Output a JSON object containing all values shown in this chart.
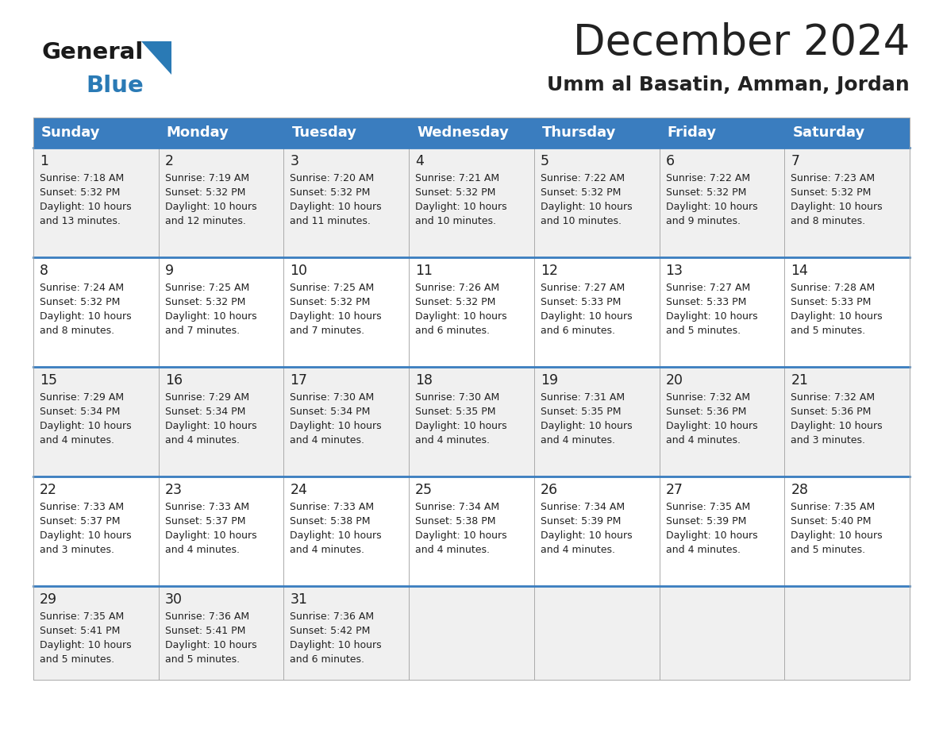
{
  "title": "December 2024",
  "subtitle": "Umm al Basatin, Amman, Jordan",
  "days_of_week": [
    "Sunday",
    "Monday",
    "Tuesday",
    "Wednesday",
    "Thursday",
    "Friday",
    "Saturday"
  ],
  "header_bg": "#3a7dbf",
  "header_text": "#ffffff",
  "row_bg_odd": "#f0f0f0",
  "row_bg_even": "#ffffff",
  "divider_color": "#3a7dbf",
  "grid_line_color": "#aaaaaa",
  "text_color": "#222222",
  "calendar_data": [
    [
      {
        "day": 1,
        "sunrise": "7:18 AM",
        "sunset": "5:32 PM",
        "daylight": "10 hours and 13 minutes."
      },
      {
        "day": 2,
        "sunrise": "7:19 AM",
        "sunset": "5:32 PM",
        "daylight": "10 hours and 12 minutes."
      },
      {
        "day": 3,
        "sunrise": "7:20 AM",
        "sunset": "5:32 PM",
        "daylight": "10 hours and 11 minutes."
      },
      {
        "day": 4,
        "sunrise": "7:21 AM",
        "sunset": "5:32 PM",
        "daylight": "10 hours and 10 minutes."
      },
      {
        "day": 5,
        "sunrise": "7:22 AM",
        "sunset": "5:32 PM",
        "daylight": "10 hours and 10 minutes."
      },
      {
        "day": 6,
        "sunrise": "7:22 AM",
        "sunset": "5:32 PM",
        "daylight": "10 hours and 9 minutes."
      },
      {
        "day": 7,
        "sunrise": "7:23 AM",
        "sunset": "5:32 PM",
        "daylight": "10 hours and 8 minutes."
      }
    ],
    [
      {
        "day": 8,
        "sunrise": "7:24 AM",
        "sunset": "5:32 PM",
        "daylight": "10 hours and 8 minutes."
      },
      {
        "day": 9,
        "sunrise": "7:25 AM",
        "sunset": "5:32 PM",
        "daylight": "10 hours and 7 minutes."
      },
      {
        "day": 10,
        "sunrise": "7:25 AM",
        "sunset": "5:32 PM",
        "daylight": "10 hours and 7 minutes."
      },
      {
        "day": 11,
        "sunrise": "7:26 AM",
        "sunset": "5:32 PM",
        "daylight": "10 hours and 6 minutes."
      },
      {
        "day": 12,
        "sunrise": "7:27 AM",
        "sunset": "5:33 PM",
        "daylight": "10 hours and 6 minutes."
      },
      {
        "day": 13,
        "sunrise": "7:27 AM",
        "sunset": "5:33 PM",
        "daylight": "10 hours and 5 minutes."
      },
      {
        "day": 14,
        "sunrise": "7:28 AM",
        "sunset": "5:33 PM",
        "daylight": "10 hours and 5 minutes."
      }
    ],
    [
      {
        "day": 15,
        "sunrise": "7:29 AM",
        "sunset": "5:34 PM",
        "daylight": "10 hours and 4 minutes."
      },
      {
        "day": 16,
        "sunrise": "7:29 AM",
        "sunset": "5:34 PM",
        "daylight": "10 hours and 4 minutes."
      },
      {
        "day": 17,
        "sunrise": "7:30 AM",
        "sunset": "5:34 PM",
        "daylight": "10 hours and 4 minutes."
      },
      {
        "day": 18,
        "sunrise": "7:30 AM",
        "sunset": "5:35 PM",
        "daylight": "10 hours and 4 minutes."
      },
      {
        "day": 19,
        "sunrise": "7:31 AM",
        "sunset": "5:35 PM",
        "daylight": "10 hours and 4 minutes."
      },
      {
        "day": 20,
        "sunrise": "7:32 AM",
        "sunset": "5:36 PM",
        "daylight": "10 hours and 4 minutes."
      },
      {
        "day": 21,
        "sunrise": "7:32 AM",
        "sunset": "5:36 PM",
        "daylight": "10 hours and 3 minutes."
      }
    ],
    [
      {
        "day": 22,
        "sunrise": "7:33 AM",
        "sunset": "5:37 PM",
        "daylight": "10 hours and 3 minutes."
      },
      {
        "day": 23,
        "sunrise": "7:33 AM",
        "sunset": "5:37 PM",
        "daylight": "10 hours and 4 minutes."
      },
      {
        "day": 24,
        "sunrise": "7:33 AM",
        "sunset": "5:38 PM",
        "daylight": "10 hours and 4 minutes."
      },
      {
        "day": 25,
        "sunrise": "7:34 AM",
        "sunset": "5:38 PM",
        "daylight": "10 hours and 4 minutes."
      },
      {
        "day": 26,
        "sunrise": "7:34 AM",
        "sunset": "5:39 PM",
        "daylight": "10 hours and 4 minutes."
      },
      {
        "day": 27,
        "sunrise": "7:35 AM",
        "sunset": "5:39 PM",
        "daylight": "10 hours and 4 minutes."
      },
      {
        "day": 28,
        "sunrise": "7:35 AM",
        "sunset": "5:40 PM",
        "daylight": "10 hours and 5 minutes."
      }
    ],
    [
      {
        "day": 29,
        "sunrise": "7:35 AM",
        "sunset": "5:41 PM",
        "daylight": "10 hours and 5 minutes."
      },
      {
        "day": 30,
        "sunrise": "7:36 AM",
        "sunset": "5:41 PM",
        "daylight": "10 hours and 5 minutes."
      },
      {
        "day": 31,
        "sunrise": "7:36 AM",
        "sunset": "5:42 PM",
        "daylight": "10 hours and 6 minutes."
      },
      null,
      null,
      null,
      null
    ]
  ],
  "logo_general_color": "#1a1a1a",
  "logo_blue_color": "#2a7ab5",
  "logo_triangle_color": "#2a7ab5",
  "fig_width": 11.88,
  "fig_height": 9.18,
  "dpi": 100
}
